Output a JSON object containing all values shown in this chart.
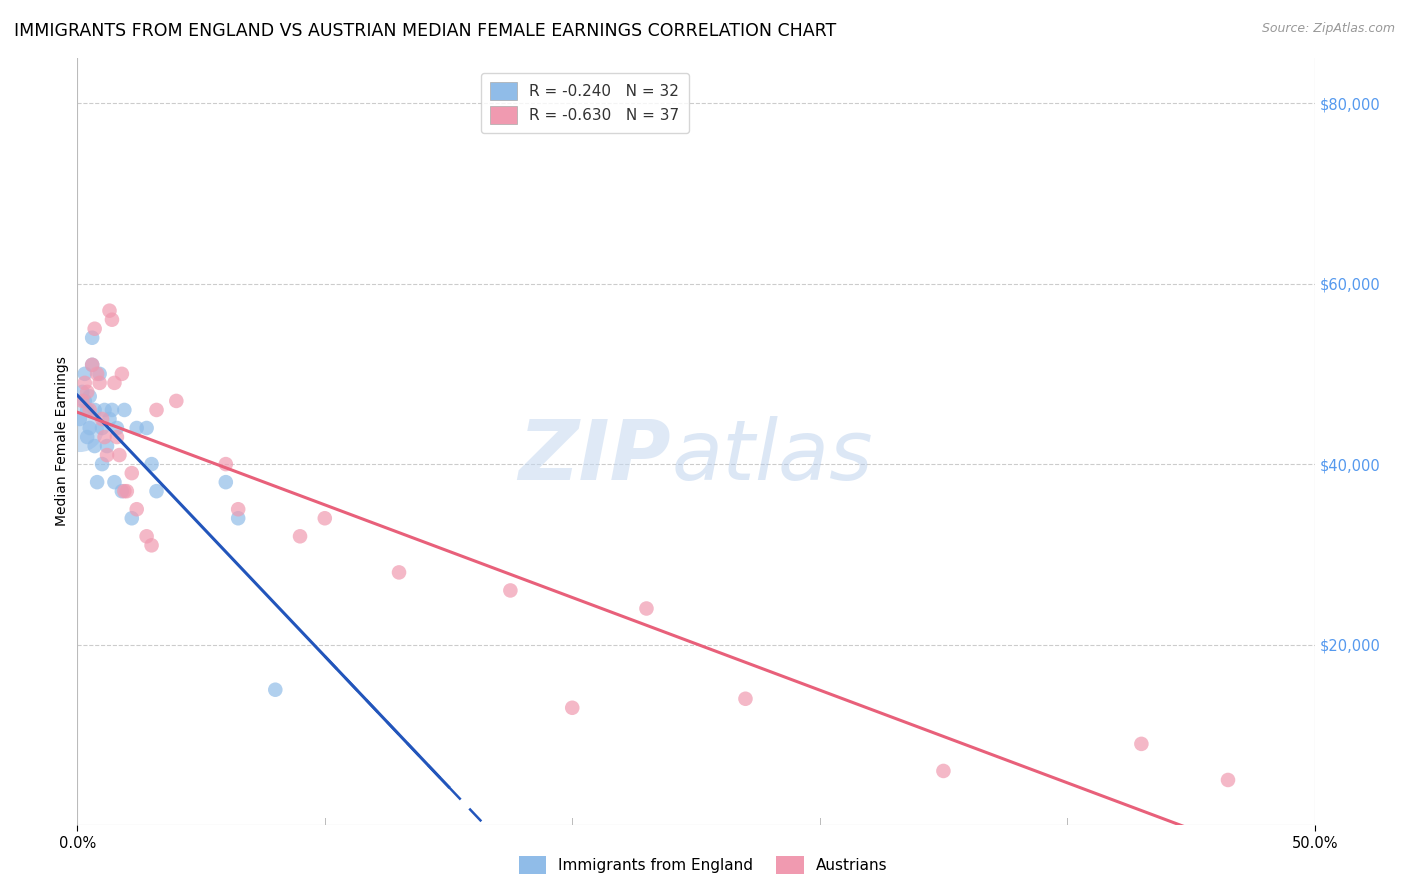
{
  "title": "IMMIGRANTS FROM ENGLAND VS AUSTRIAN MEDIAN FEMALE EARNINGS CORRELATION CHART",
  "source": "Source: ZipAtlas.com",
  "ylabel": "Median Female Earnings",
  "yticks": [
    0,
    20000,
    40000,
    60000,
    80000
  ],
  "ytick_labels": [
    "",
    "$20,000",
    "$40,000",
    "$60,000",
    "$80,000"
  ],
  "xlim": [
    0.0,
    0.5
  ],
  "ylim": [
    0,
    85000
  ],
  "england_x": [
    0.001,
    0.002,
    0.003,
    0.003,
    0.004,
    0.004,
    0.005,
    0.005,
    0.006,
    0.006,
    0.007,
    0.007,
    0.008,
    0.009,
    0.01,
    0.01,
    0.011,
    0.012,
    0.013,
    0.014,
    0.015,
    0.016,
    0.018,
    0.019,
    0.022,
    0.024,
    0.028,
    0.03,
    0.032,
    0.06,
    0.065,
    0.08
  ],
  "england_y": [
    45000,
    48000,
    47000,
    50000,
    46000,
    43000,
    47500,
    44000,
    51000,
    54000,
    46000,
    42000,
    38000,
    50000,
    40000,
    44000,
    46000,
    42000,
    45000,
    46000,
    38000,
    44000,
    37000,
    46000,
    34000,
    44000,
    44000,
    40000,
    37000,
    38000,
    34000,
    15000
  ],
  "austrian_x": [
    0.002,
    0.003,
    0.004,
    0.005,
    0.006,
    0.007,
    0.008,
    0.009,
    0.01,
    0.011,
    0.012,
    0.013,
    0.014,
    0.015,
    0.016,
    0.017,
    0.018,
    0.019,
    0.02,
    0.022,
    0.024,
    0.028,
    0.03,
    0.032,
    0.04,
    0.06,
    0.065,
    0.09,
    0.1,
    0.13,
    0.175,
    0.2,
    0.23,
    0.27,
    0.35,
    0.43,
    0.465
  ],
  "austrian_y": [
    47000,
    49000,
    48000,
    46000,
    51000,
    55000,
    50000,
    49000,
    45000,
    43000,
    41000,
    57000,
    56000,
    49000,
    43000,
    41000,
    50000,
    37000,
    37000,
    39000,
    35000,
    32000,
    31000,
    46000,
    47000,
    40000,
    35000,
    32000,
    34000,
    28000,
    26000,
    13000,
    24000,
    14000,
    6000,
    9000,
    5000
  ],
  "england_color": "#90bce8",
  "austrian_color": "#f09ab0",
  "england_line_color": "#2255bb",
  "austrian_line_color": "#e8607a",
  "watermark_zip": "ZIP",
  "watermark_atlas": "atlas",
  "background_color": "#ffffff",
  "grid_color": "#cccccc",
  "right_label_color": "#5599ee",
  "title_fontsize": 12.5,
  "source_fontsize": 9,
  "axis_label_fontsize": 10,
  "tick_fontsize": 10.5,
  "legend_fontsize": 11
}
